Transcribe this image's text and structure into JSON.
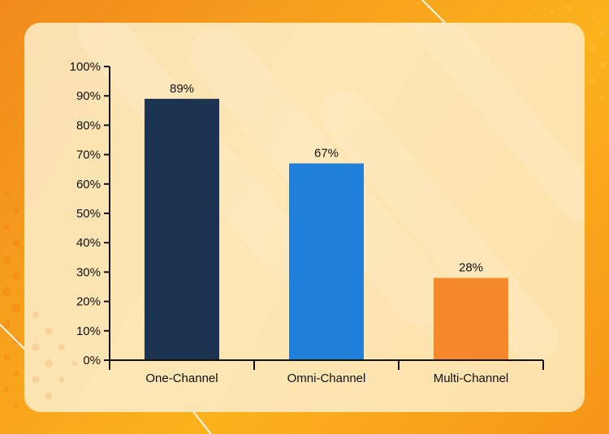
{
  "chart_data": {
    "type": "bar",
    "title": "",
    "xlabel": "",
    "ylabel": "",
    "categories": [
      "One-Channel",
      "Omni-Channel",
      "Multi-Channel"
    ],
    "values": [
      89,
      67,
      28
    ],
    "data_labels": [
      "89%",
      "67%",
      "28%"
    ],
    "colors": [
      "#1c3352",
      "#1f7fd9",
      "#f5882b"
    ],
    "ylim": [
      0,
      100
    ],
    "yticks": [
      0,
      10,
      20,
      30,
      40,
      50,
      60,
      70,
      80,
      90,
      100
    ],
    "ytick_labels": [
      "0%",
      "10%",
      "20%",
      "30%",
      "40%",
      "50%",
      "60%",
      "70%",
      "80%",
      "90%",
      "100%"
    ],
    "grid": false,
    "legend": "none"
  },
  "theme": {
    "axis_color": "#111111",
    "text_color": "#111111"
  }
}
